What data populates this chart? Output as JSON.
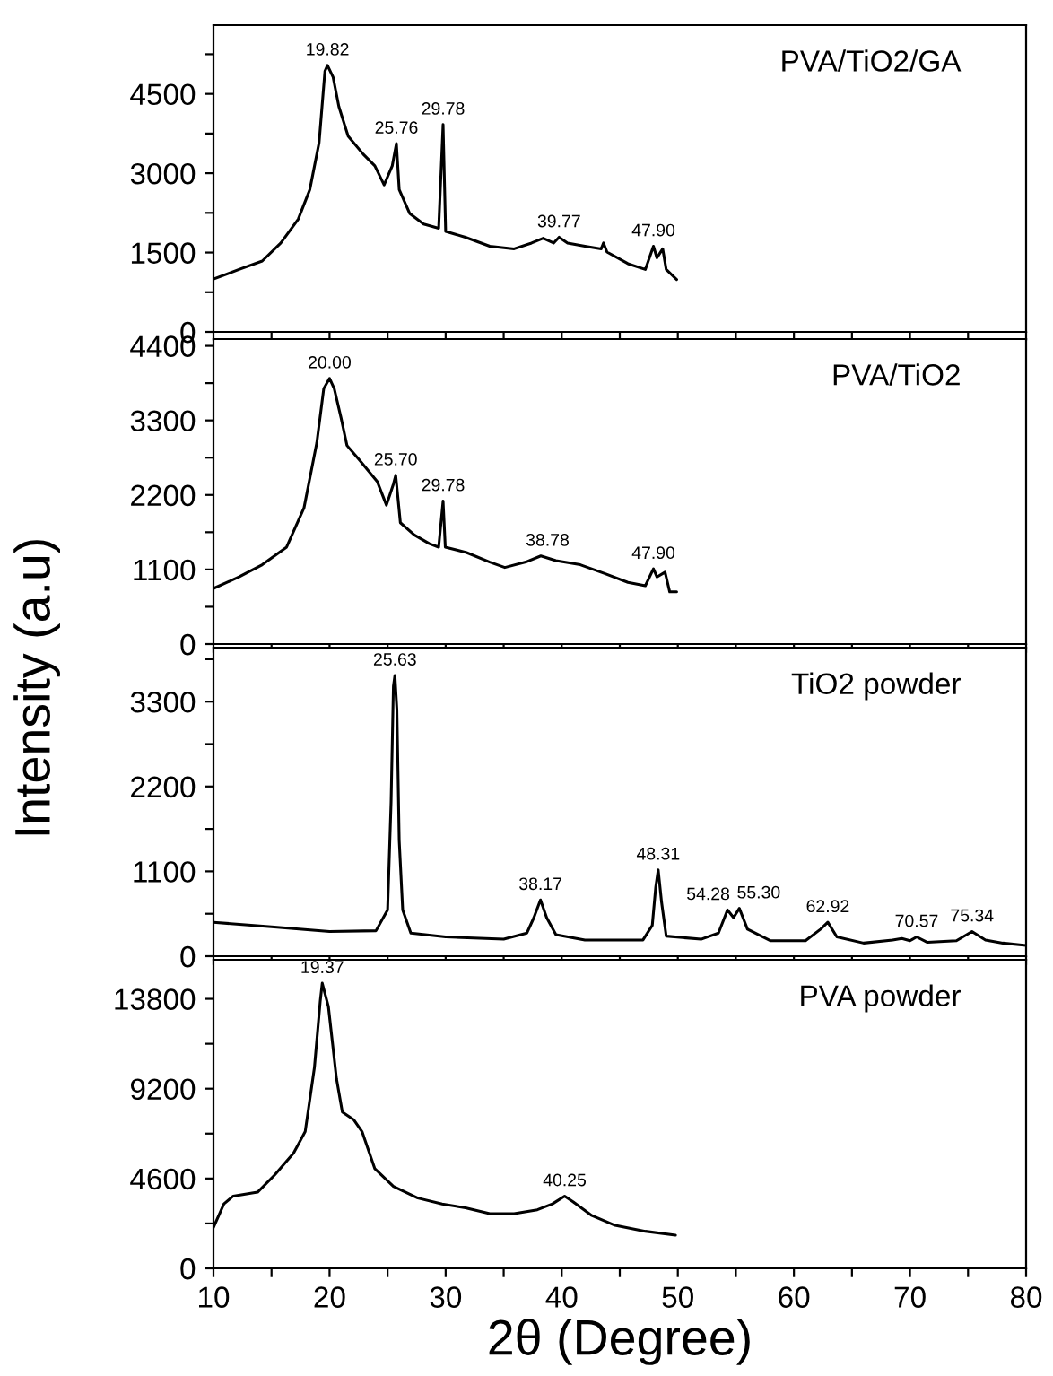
{
  "chart_data": [
    {
      "type": "line",
      "xlim": [
        10,
        80
      ],
      "xticks": [
        10,
        {
          "value": 15,
          "label": null
        },
        20,
        {
          "value": 25,
          "label": null
        },
        30,
        {
          "value": 35,
          "label": null
        },
        40,
        {
          "value": 45,
          "label": null
        },
        50,
        {
          "value": 55,
          "label": null
        },
        60,
        {
          "value": 65,
          "label": null
        },
        70,
        {
          "value": 75,
          "label": null
        },
        80
      ],
      "ylim": [
        0,
        5800
      ],
      "yticks": [
        0,
        {
          "value": 750,
          "label": null
        },
        1500,
        {
          "value": 2250,
          "label": null
        },
        3000,
        {
          "value": 3750,
          "label": null
        },
        4500,
        {
          "value": 5250,
          "label": null
        }
      ],
      "tick_labels": "y",
      "series": [
        {
          "name": "PVA/TiO2/GA",
          "color": "#000000",
          "x": [
            10,
            12.2,
            14.2,
            15.8,
            17.3,
            18.3,
            19.1,
            19.6,
            19.82,
            20.3,
            20.8,
            21.6,
            22.9,
            23.9,
            24.7,
            25.4,
            25.76,
            26.0,
            26.9,
            28.1,
            29.4,
            29.78,
            30.0,
            31.7,
            33.8,
            35.9,
            37.4,
            38.4,
            39.3,
            39.77,
            40.5,
            42.0,
            43.4,
            43.6,
            43.9,
            45.7,
            47.2,
            47.9,
            48.2,
            48.7,
            49.0,
            49.9
          ],
          "values": [
            1000,
            1180,
            1340,
            1680,
            2130,
            2690,
            3580,
            4930,
            5040,
            4820,
            4260,
            3700,
            3360,
            3140,
            2780,
            3140,
            3560,
            2690,
            2240,
            2040,
            1960,
            3920,
            1900,
            1790,
            1620,
            1570,
            1680,
            1770,
            1680,
            1790,
            1680,
            1620,
            1570,
            1680,
            1510,
            1290,
            1180,
            1620,
            1400,
            1570,
            1180,
            990
          ]
        }
      ],
      "annotations": [
        {
          "text": "19.82",
          "x": 19.82,
          "y": 5040
        },
        {
          "text": "25.76",
          "x": 25.76,
          "y": 3560
        },
        {
          "text": "29.78",
          "x": 29.78,
          "y": 3920
        },
        {
          "text": "39.77",
          "x": 39.77,
          "y": 1790
        },
        {
          "text": "47.90",
          "x": 47.9,
          "y": 1620
        }
      ]
    },
    {
      "type": "line",
      "xlim": [
        10,
        80
      ],
      "xticks": [
        10,
        {
          "value": 15,
          "label": null
        },
        20,
        {
          "value": 25,
          "label": null
        },
        30,
        {
          "value": 35,
          "label": null
        },
        40,
        {
          "value": 45,
          "label": null
        },
        50,
        {
          "value": 55,
          "label": null
        },
        60,
        {
          "value": 65,
          "label": null
        },
        70,
        {
          "value": 75,
          "label": null
        },
        80
      ],
      "ylim": [
        0,
        4500
      ],
      "yticks": [
        0,
        {
          "value": 550,
          "label": null
        },
        1100,
        {
          "value": 1650,
          "label": null
        },
        2200,
        {
          "value": 2750,
          "label": null
        },
        3300,
        {
          "value": 3850,
          "label": null
        },
        4400
      ],
      "tick_labels": "y",
      "series": [
        {
          "name": "PVA/TiO2",
          "color": "#000000",
          "x": [
            10,
            12.2,
            14.2,
            16.3,
            17.8,
            18.9,
            19.5,
            20.0,
            20.4,
            21.0,
            21.5,
            22.6,
            24.1,
            24.9,
            25.5,
            25.7,
            26.1,
            27.3,
            28.6,
            29.4,
            29.78,
            29.97,
            31.8,
            33.8,
            35.1,
            36.9,
            38.2,
            39.5,
            41.6,
            43.7,
            45.7,
            47.2,
            47.9,
            48.2,
            48.9,
            49.3,
            49.9
          ],
          "values": [
            820,
            990,
            1170,
            1430,
            2010,
            2970,
            3770,
            3920,
            3770,
            3330,
            2930,
            2710,
            2400,
            2050,
            2360,
            2490,
            1790,
            1610,
            1480,
            1430,
            2110,
            1430,
            1350,
            1210,
            1130,
            1210,
            1300,
            1230,
            1170,
            1040,
            910,
            860,
            1110,
            990,
            1060,
            770,
            770
          ]
        }
      ],
      "annotations": [
        {
          "text": "20.00",
          "x": 20.0,
          "y": 3920
        },
        {
          "text": "25.70",
          "x": 25.7,
          "y": 2490
        },
        {
          "text": "29.78",
          "x": 29.78,
          "y": 2110
        },
        {
          "text": "38.78",
          "x": 38.78,
          "y": 1300
        },
        {
          "text": "47.90",
          "x": 47.9,
          "y": 1110
        }
      ]
    },
    {
      "type": "line",
      "xlim": [
        10,
        80
      ],
      "xticks": [
        10,
        {
          "value": 15,
          "label": null
        },
        20,
        {
          "value": 25,
          "label": null
        },
        30,
        {
          "value": 35,
          "label": null
        },
        40,
        {
          "value": 45,
          "label": null
        },
        50,
        {
          "value": 55,
          "label": null
        },
        60,
        {
          "value": 65,
          "label": null
        },
        70,
        {
          "value": 75,
          "label": null
        },
        80
      ],
      "ylim": [
        0,
        4000
      ],
      "yticks": [
        0,
        {
          "value": 550,
          "label": null
        },
        1100,
        {
          "value": 1650,
          "label": null
        },
        2200,
        {
          "value": 2750,
          "label": null
        },
        3300,
        {
          "value": 3850,
          "label": null
        }
      ],
      "tick_labels": "y",
      "ylabel": "Intensity (a.u)",
      "series": [
        {
          "name": "TiO2 powder",
          "color": "#000000",
          "x": [
            10,
            15,
            20,
            24,
            25,
            25.3,
            25.5,
            25.63,
            25.8,
            26,
            26.3,
            27,
            30,
            35,
            37,
            37.6,
            38.17,
            38.7,
            39.5,
            42,
            47,
            47.8,
            48.1,
            48.31,
            48.6,
            49,
            52,
            53.5,
            54.28,
            54.8,
            55.3,
            56,
            58,
            61,
            62.3,
            62.92,
            63.7,
            66,
            68.5,
            69.3,
            70.0,
            70.57,
            71.5,
            74,
            75.34,
            76.5,
            78,
            80
          ],
          "values": [
            440,
            380,
            320,
            330,
            600,
            2000,
            3500,
            3640,
            3200,
            1500,
            600,
            300,
            250,
            220,
            300,
            500,
            730,
            500,
            280,
            210,
            210,
            400,
            900,
            1120,
            700,
            260,
            220,
            300,
            600,
            500,
            620,
            350,
            200,
            200,
            350,
            440,
            250,
            170,
            210,
            230,
            200,
            250,
            180,
            200,
            320,
            210,
            170,
            140
          ]
        }
      ],
      "annotations": [
        {
          "text": "25.63",
          "x": 25.63,
          "y": 3640
        },
        {
          "text": "38.17",
          "x": 38.17,
          "y": 730
        },
        {
          "text": "48.31",
          "x": 48.31,
          "y": 1120
        },
        {
          "text": "54.28",
          "x": 54.28,
          "y": 600
        },
        {
          "text": "55.30",
          "x": 55.3,
          "y": 620
        },
        {
          "text": "62.92",
          "x": 62.92,
          "y": 440
        },
        {
          "text": "70.57",
          "x": 70.57,
          "y": 250
        },
        {
          "text": "75.34",
          "x": 75.34,
          "y": 320
        }
      ]
    },
    {
      "type": "line",
      "xlim": [
        10,
        80
      ],
      "xticks": [
        10,
        {
          "value": 15,
          "label": null
        },
        20,
        {
          "value": 25,
          "label": null
        },
        30,
        {
          "value": 35,
          "label": null
        },
        40,
        {
          "value": 45,
          "label": null
        },
        50,
        {
          "value": 55,
          "label": null
        },
        60,
        {
          "value": 65,
          "label": null
        },
        70,
        {
          "value": 75,
          "label": null
        },
        80
      ],
      "ylim": [
        0,
        15800
      ],
      "yticks": [
        0,
        {
          "value": 2300,
          "label": null
        },
        4600,
        {
          "value": 6900,
          "label": null
        },
        9200,
        {
          "value": 11500,
          "label": null
        },
        13800
      ],
      "xlabel": "2θ (Degree)",
      "series": [
        {
          "name": "PVA powder",
          "color": "#000000",
          "x": [
            10,
            10.9,
            11.7,
            13.8,
            15.3,
            16.9,
            17.9,
            18.7,
            19.2,
            19.37,
            19.9,
            20.6,
            21.1,
            22.1,
            22.8,
            23.9,
            25.5,
            27.6,
            29.7,
            31.7,
            33.8,
            35.9,
            37.9,
            39.2,
            40.25,
            41.0,
            42.6,
            44.6,
            47.2,
            49.8
          ],
          "values": [
            2100,
            3300,
            3700,
            3900,
            4800,
            5900,
            7000,
            10300,
            13700,
            14600,
            13400,
            9700,
            8000,
            7600,
            7000,
            5100,
            4200,
            3600,
            3300,
            3100,
            2800,
            2800,
            3000,
            3300,
            3700,
            3400,
            2700,
            2200,
            1900,
            1700
          ]
        }
      ],
      "annotations": [
        {
          "text": "19.37",
          "x": 19.37,
          "y": 14600
        },
        {
          "text": "40.25",
          "x": 40.25,
          "y": 3700
        }
      ]
    }
  ]
}
